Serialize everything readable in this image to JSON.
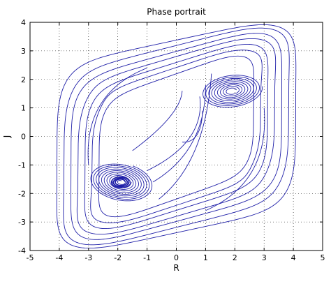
{
  "chart_data": {
    "type": "line",
    "title": "Phase portrait",
    "xlabel": "R",
    "ylabel": "J",
    "xlim": [
      -5,
      5
    ],
    "ylim": [
      -4,
      4
    ],
    "xticks": [
      -5,
      -4,
      -3,
      -2,
      -1,
      0,
      1,
      2,
      3,
      4,
      5
    ],
    "yticks": [
      -4,
      -3,
      -2,
      -1,
      0,
      1,
      2,
      3,
      4
    ],
    "grid": true,
    "grid_style": "dotted",
    "legend": "none",
    "line_color": "#1f1fa8",
    "attractor": {
      "description_free": true,
      "focus_upper": [
        1.9,
        1.6
      ],
      "focus_lower": [
        -1.9,
        -1.6
      ],
      "outer_extent_r": [
        -4.3,
        4.2
      ],
      "outer_extent_j": [
        -3.4,
        3.5
      ]
    }
  }
}
